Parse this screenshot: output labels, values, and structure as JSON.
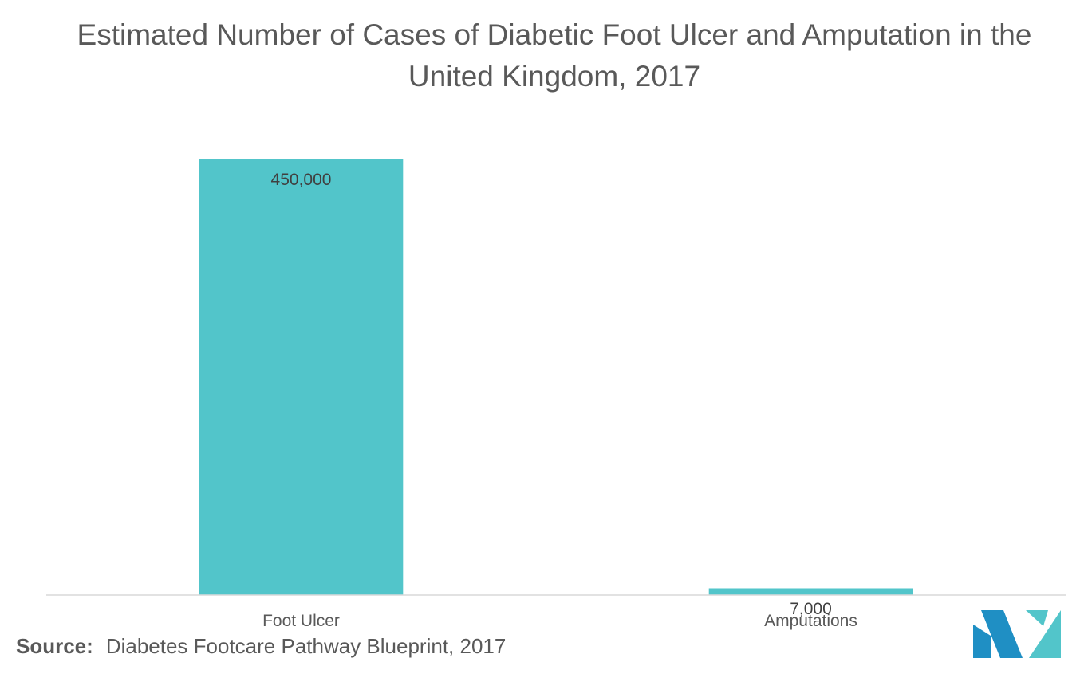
{
  "chart_data": {
    "type": "bar",
    "title": "Estimated Number of Cases of Diabetic Foot Ulcer and Amputation in the United Kingdom, 2017",
    "categories": [
      "Foot Ulcer",
      "Amputations"
    ],
    "values": [
      450000,
      7000
    ],
    "value_labels": [
      "450,000",
      "7,000"
    ],
    "xlabel": "",
    "ylabel": "",
    "ylim": [
      0,
      450000
    ],
    "grid": false,
    "legend": "none",
    "bar_color": "#52c5ca"
  },
  "source": {
    "label": "Source:",
    "text": "Diabetes Footcare Pathway Blueprint, 2017"
  },
  "logo": {
    "icon": "mordor-intelligence-logo-icon",
    "colors": [
      "#1f8fc4",
      "#52c5ca"
    ]
  }
}
